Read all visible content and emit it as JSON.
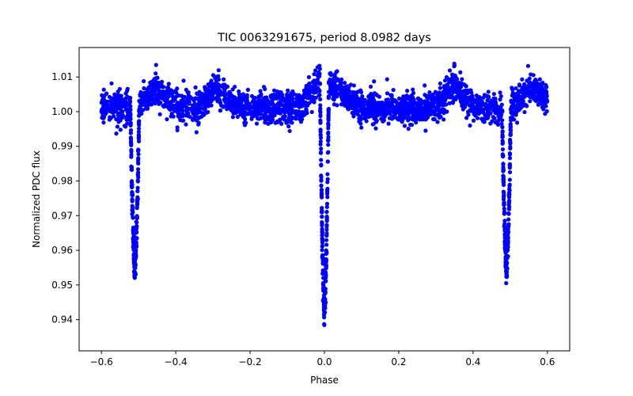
{
  "chart_data": {
    "type": "scatter",
    "title": "TIC 0063291675, period 8.0982 days",
    "xlabel": "Phase",
    "ylabel": "Normalized PDC flux",
    "xlim": [
      -0.66,
      0.66
    ],
    "ylim": [
      0.931,
      1.0185
    ],
    "xticks": [
      -0.6,
      -0.4,
      -0.2,
      0.0,
      0.2,
      0.4,
      0.6
    ],
    "yticks": [
      0.94,
      0.95,
      0.96,
      0.97,
      0.98,
      0.99,
      1.0,
      1.01
    ],
    "xtick_labels": [
      "−0.6",
      "−0.4",
      "−0.2",
      "0.0",
      "0.2",
      "0.4",
      "0.6"
    ],
    "ytick_labels": [
      "0.94",
      "0.95",
      "0.96",
      "0.97",
      "0.98",
      "0.99",
      "1.00",
      "1.01"
    ],
    "grid": false,
    "marker_color": "#0000ff",
    "baseline_flux": 1.001,
    "x_range": [
      -0.6,
      0.6
    ],
    "dips": [
      {
        "center": -0.51,
        "min_flux": 0.955,
        "half_width": 0.012
      },
      {
        "center": 0.0,
        "min_flux": 0.935,
        "half_width": 0.012
      },
      {
        "center": 0.49,
        "min_flux": 0.955,
        "half_width": 0.012
      }
    ],
    "bumps": [
      {
        "center": -0.455,
        "peak_flux": 1.0105
      },
      {
        "center": -0.29,
        "peak_flux": 1.0095
      },
      {
        "center": -0.01,
        "peak_flux": 1.014
      },
      {
        "center": 0.04,
        "peak_flux": 1.0095
      },
      {
        "center": 0.35,
        "peak_flux": 1.013
      },
      {
        "center": 0.56,
        "peak_flux": 1.011
      }
    ]
  }
}
